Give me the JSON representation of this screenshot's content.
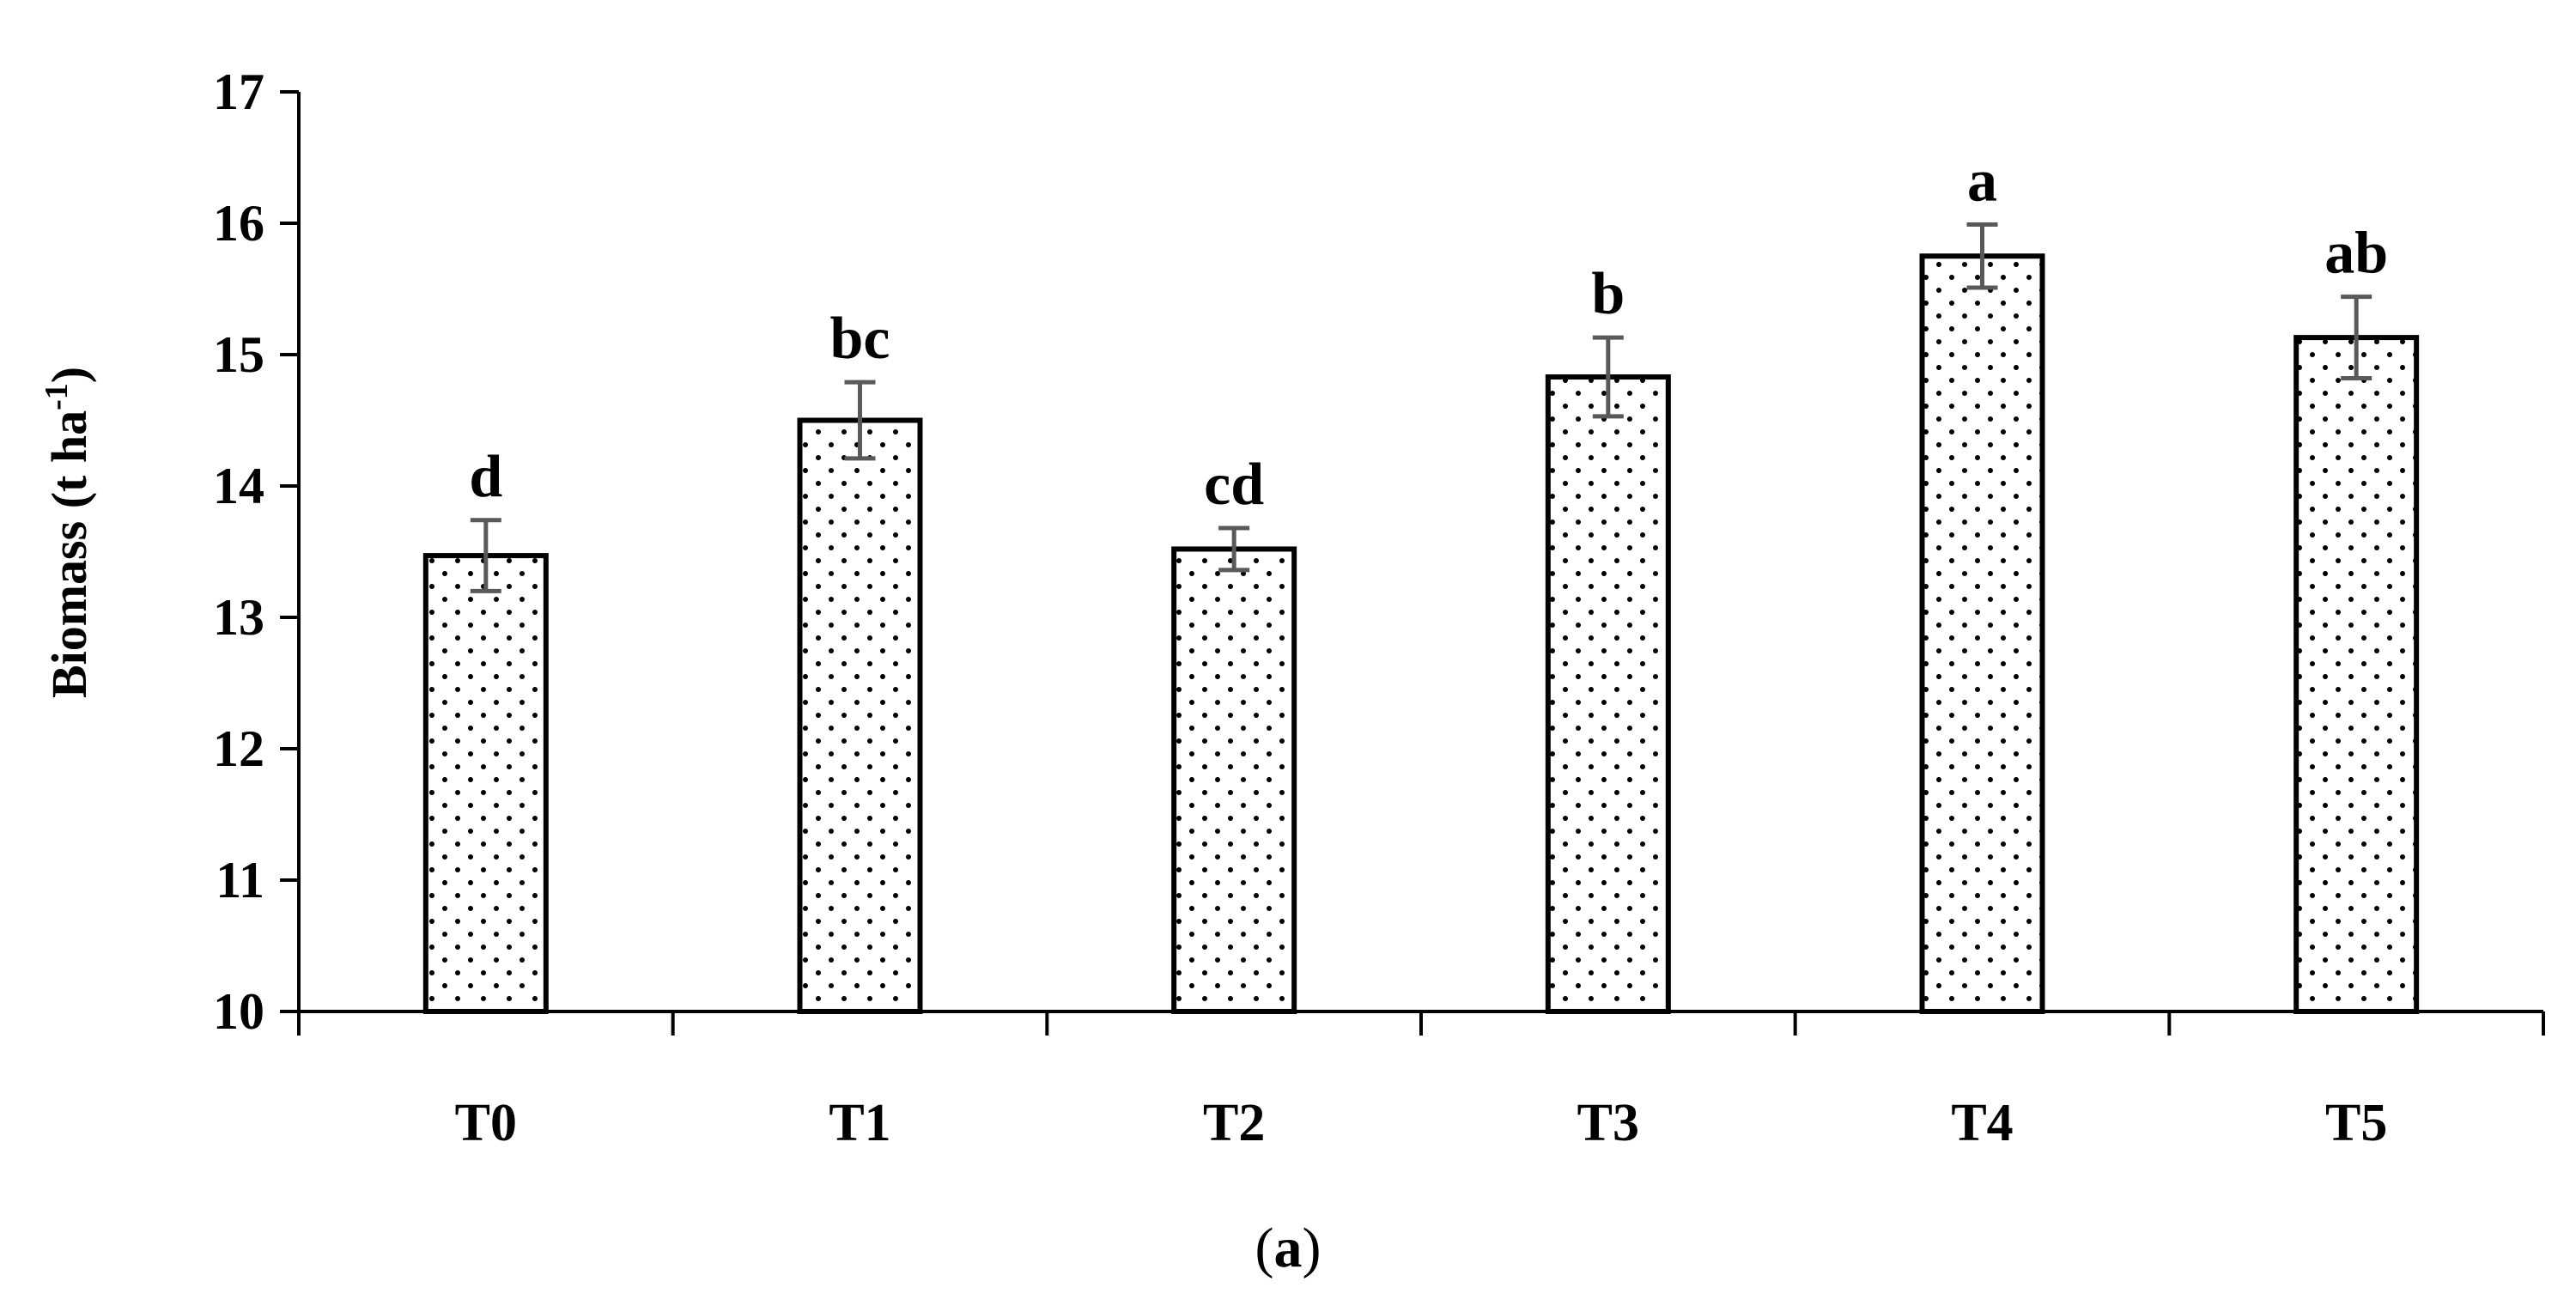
{
  "chart_data": {
    "type": "bar",
    "categories": [
      "T0",
      "T1",
      "T2",
      "T3",
      "T4",
      "T5"
    ],
    "values": [
      13.47,
      14.5,
      13.52,
      14.83,
      15.75,
      15.13
    ],
    "errors": [
      0.27,
      0.29,
      0.16,
      0.3,
      0.24,
      0.31
    ],
    "significance_letters": [
      "d",
      "bc",
      "cd",
      "b",
      "a",
      "ab"
    ],
    "ylabel": {
      "main": "Biomass (t ha",
      "superscript": "-1",
      "close": ")"
    },
    "xlabel": "",
    "ylim": [
      10,
      17
    ],
    "yticks": [
      10,
      11,
      12,
      13,
      14,
      15,
      16,
      17
    ],
    "bar_pattern": "dotted",
    "bar_fill": "#ffffff",
    "bar_stroke": "#000000",
    "error_bar_color": "#595959",
    "grid": false,
    "legend": "none"
  },
  "panel_label": {
    "open": "(",
    "letter": "a",
    "close": ")"
  }
}
